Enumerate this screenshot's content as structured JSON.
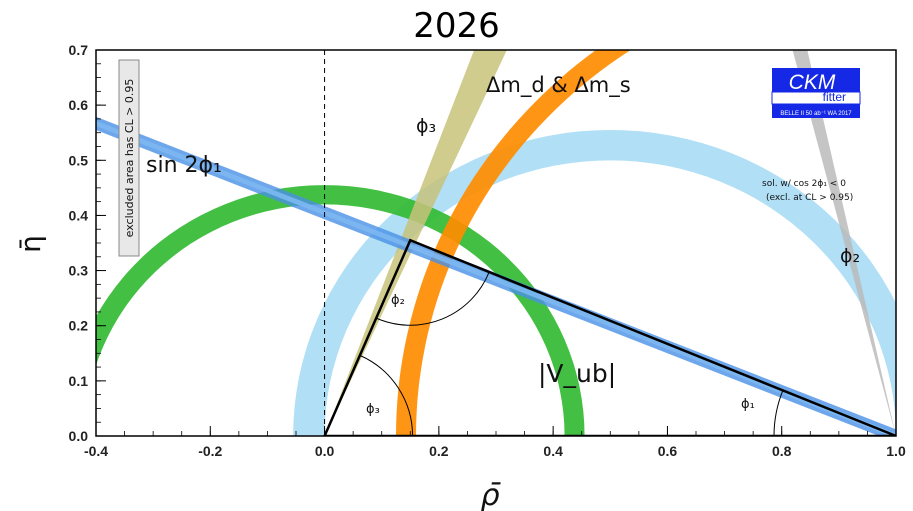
{
  "title": "2026",
  "chart_data": {
    "type": "scatter",
    "title": "2026",
    "xlabel": "ρ̄",
    "ylabel": "η̄",
    "xlim": [
      -0.4,
      1.0
    ],
    "ylim": [
      0.0,
      0.7
    ],
    "x_ticks": [
      "-0.4",
      "-0.2",
      "0.0",
      "0.2",
      "0.4",
      "0.6",
      "0.8",
      "1.0"
    ],
    "y_ticks": [
      "0.0",
      "0.1",
      "0.2",
      "0.3",
      "0.4",
      "0.5",
      "0.6",
      "0.7"
    ],
    "apex": {
      "rho": 0.15,
      "eta": 0.355
    },
    "triangle_vertices": [
      [
        0.0,
        0.0
      ],
      [
        1.0,
        0.0
      ],
      [
        0.15,
        0.355
      ]
    ],
    "constraints": [
      {
        "name": "sin2phi1",
        "color": "#4a90e6",
        "type": "band-line",
        "through": [
          1.0,
          0.0
        ],
        "slope": -0.405,
        "half_width": 0.012
      },
      {
        "name": "Vub",
        "color": "#33bb33",
        "type": "ring",
        "center": [
          0.0,
          0.0
        ],
        "inner_radius": 0.42,
        "outer_radius": 0.455
      },
      {
        "name": "dmd_dms",
        "color": "#ff8c00",
        "type": "ring",
        "center": [
          1.0,
          0.0
        ],
        "inner_radius": 0.84,
        "outer_radius": 0.875
      },
      {
        "name": "phi2",
        "color": "#a9dcf5",
        "type": "ring",
        "center": [
          0.5,
          0.0
        ],
        "inner_radius": 0.5,
        "outer_radius": 0.555
      },
      {
        "name": "phi3",
        "color": "#c8c37a",
        "type": "wedge",
        "apex": [
          0.0,
          0.0
        ],
        "angle_deg": [
          65.5,
          69.5
        ]
      },
      {
        "name": "phi2_excluded",
        "color": "#bbbbbb",
        "type": "wedge",
        "apex": [
          1.0,
          0.0
        ],
        "angle_deg": [
          102.5,
          104.5
        ]
      }
    ],
    "colors": {
      "sin2phi1": "#4a90e6",
      "vub": "#33bb33",
      "dmd_dms": "#ff8c00",
      "phi2": "#a9dcf5",
      "phi3": "#c8c37a",
      "triangle": "#000000"
    },
    "annotations": {
      "sin2phi1": "sin 2ϕ₁",
      "dm": "Δm_d & Δm_s",
      "phi3_band": "ϕ₃",
      "phi2_band": "ϕ₂",
      "vub": "|V_ub|",
      "angle_phi1": "ϕ₁",
      "angle_phi2": "ϕ₂",
      "angle_phi3": "ϕ₃",
      "excluded_note": "excluded area has CL > 0.95",
      "sol_note_1": "sol. w/ cos 2ϕ₁ < 0",
      "sol_note_2": "(excl. at CL > 0.95)"
    },
    "logo": {
      "line1": "CKM",
      "line2": "fitter",
      "line3": "BELLE II 50 ab⁻¹ WA 2017"
    }
  }
}
